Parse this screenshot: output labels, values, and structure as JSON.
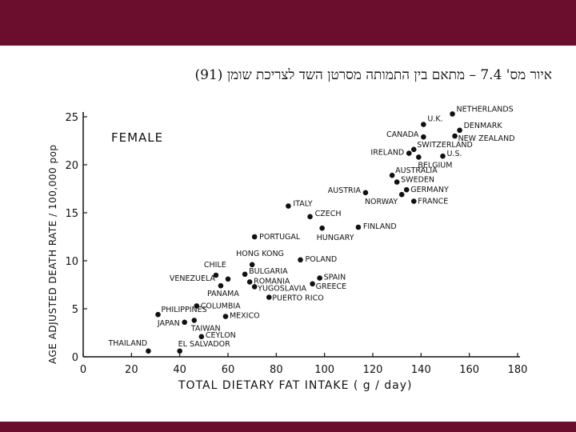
{
  "slide": {
    "band_color": "#6b0e2e",
    "caption": "איור מס' 7.4 – מתאם בין התמותה מסרטן השד לצריכת שומן (91)"
  },
  "chart_data": {
    "type": "scatter",
    "title": "FEMALE",
    "xlabel": "TOTAL DIETARY FAT INTAKE ( g / day)",
    "ylabel": "AGE ADJUSTED DEATH RATE / 100,000 pop",
    "xlim": [
      0,
      180
    ],
    "ylim": [
      0,
      25
    ],
    "xticks": [
      0,
      20,
      40,
      60,
      80,
      100,
      120,
      140,
      160,
      180
    ],
    "yticks": [
      0,
      5,
      10,
      15,
      20,
      25
    ],
    "xtick_labels": [
      "0",
      "20",
      "40",
      "60",
      "80",
      "100",
      "120",
      "140",
      "160",
      "180"
    ],
    "ytick_labels": [
      "0",
      "5",
      "10",
      "15",
      "20",
      "25"
    ],
    "grid": false,
    "points": [
      {
        "label": "NETHERLANDS",
        "x": 153,
        "y": 25.3
      },
      {
        "label": "U.K.",
        "x": 141,
        "y": 24.2
      },
      {
        "label": "CANADA",
        "x": 141,
        "y": 22.9
      },
      {
        "label": "DENMARK",
        "x": 156,
        "y": 23.6
      },
      {
        "label": "NEW ZEALAND",
        "x": 154,
        "y": 23.0
      },
      {
        "label": "SWITZERLAND",
        "x": 137,
        "y": 21.6
      },
      {
        "label": "IRELAND",
        "x": 135,
        "y": 21.2
      },
      {
        "label": "U.S.",
        "x": 149,
        "y": 20.9
      },
      {
        "label": "BELGIUM",
        "x": 139,
        "y": 20.8
      },
      {
        "label": "AUSTRALIA",
        "x": 128,
        "y": 18.9
      },
      {
        "label": "SWEDEN",
        "x": 130,
        "y": 18.2
      },
      {
        "label": "GERMANY",
        "x": 134,
        "y": 17.4
      },
      {
        "label": "AUSTRIA",
        "x": 117,
        "y": 17.1
      },
      {
        "label": "NORWAY",
        "x": 132,
        "y": 16.9
      },
      {
        "label": "FRANCE",
        "x": 137,
        "y": 16.2
      },
      {
        "label": "ITALY",
        "x": 85,
        "y": 15.7
      },
      {
        "label": "CZECH",
        "x": 94,
        "y": 14.6
      },
      {
        "label": "FINLAND",
        "x": 114,
        "y": 13.5
      },
      {
        "label": "HUNGARY",
        "x": 99,
        "y": 13.4
      },
      {
        "label": "PORTUGAL",
        "x": 71,
        "y": 12.5
      },
      {
        "label": "HONG KONG",
        "x": 70,
        "y": 9.6
      },
      {
        "label": "POLAND",
        "x": 90,
        "y": 10.1
      },
      {
        "label": "CHILE",
        "x": 55,
        "y": 8.5
      },
      {
        "label": "BULGARIA",
        "x": 67,
        "y": 8.6
      },
      {
        "label": "VENEZUELA",
        "x": 60,
        "y": 8.1
      },
      {
        "label": "ROMANIA",
        "x": 69,
        "y": 7.8
      },
      {
        "label": "PANAMA",
        "x": 57,
        "y": 7.4
      },
      {
        "label": "YUGOSLAVIA",
        "x": 71,
        "y": 7.3
      },
      {
        "label": "SPAIN",
        "x": 98,
        "y": 8.2
      },
      {
        "label": "GREECE",
        "x": 95,
        "y": 7.6
      },
      {
        "label": "PUERTO RICO",
        "x": 77,
        "y": 6.2
      },
      {
        "label": "COLUMBIA",
        "x": 47,
        "y": 5.3
      },
      {
        "label": "PHILIPPINES",
        "x": 31,
        "y": 4.4
      },
      {
        "label": "MEXICO",
        "x": 59,
        "y": 4.2
      },
      {
        "label": "JAPAN",
        "x": 42,
        "y": 3.6
      },
      {
        "label": "TAIWAN",
        "x": 46,
        "y": 3.8
      },
      {
        "label": "CEYLON",
        "x": 49,
        "y": 2.1
      },
      {
        "label": "THAILAND",
        "x": 27,
        "y": 0.6
      },
      {
        "label": "EL SALVADOR",
        "x": 40,
        "y": 0.6
      }
    ]
  }
}
